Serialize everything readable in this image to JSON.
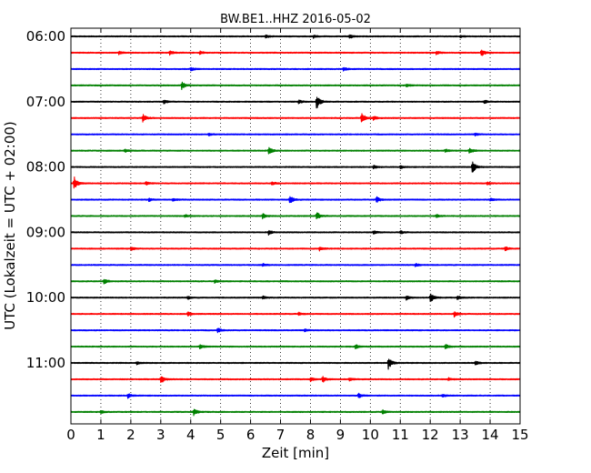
{
  "chart_data": {
    "type": "line",
    "title": "BW.BE1..HHZ 2016-05-02",
    "xlabel": "Zeit  [min]",
    "ylabel": "UTC (Lokalzeit = UTC + 02:00)",
    "xlim": [
      0,
      15
    ],
    "x_ticks": [
      "0",
      "1",
      "2",
      "3",
      "4",
      "5",
      "6",
      "7",
      "8",
      "9",
      "10",
      "11",
      "12",
      "13",
      "14",
      "15"
    ],
    "y_tick_labels": [
      "06:00",
      "07:00",
      "08:00",
      "09:00",
      "10:00",
      "11:00"
    ],
    "grid": true,
    "trace_interval_minutes": 15,
    "trace_colors": [
      "#000000",
      "#ff0000",
      "#0000ff",
      "#008000"
    ],
    "traces": [
      {
        "start": "06:00",
        "events": [
          [
            6.5,
            0.35
          ],
          [
            8.1,
            0.3
          ],
          [
            9.3,
            0.45
          ],
          [
            13.0,
            0.25
          ]
        ]
      },
      {
        "start": "06:15",
        "events": [
          [
            1.6,
            0.3
          ],
          [
            3.3,
            0.4
          ],
          [
            4.3,
            0.3
          ],
          [
            12.2,
            0.35
          ],
          [
            13.7,
            0.7
          ]
        ]
      },
      {
        "start": "06:30",
        "events": [
          [
            4.0,
            0.35
          ],
          [
            9.1,
            0.35
          ]
        ]
      },
      {
        "start": "06:45",
        "events": [
          [
            3.7,
            0.8
          ],
          [
            11.2,
            0.3
          ]
        ]
      },
      {
        "start": "07:00",
        "events": [
          [
            3.1,
            0.4
          ],
          [
            7.6,
            0.35
          ],
          [
            8.2,
            1.6
          ],
          [
            13.8,
            0.35
          ]
        ]
      },
      {
        "start": "07:15",
        "events": [
          [
            2.4,
            0.8
          ],
          [
            9.7,
            1.2
          ],
          [
            10.1,
            0.4
          ]
        ]
      },
      {
        "start": "07:30",
        "events": [
          [
            4.6,
            0.25
          ],
          [
            13.5,
            0.25
          ]
        ]
      },
      {
        "start": "07:45",
        "events": [
          [
            1.8,
            0.3
          ],
          [
            6.6,
            0.8
          ],
          [
            12.5,
            0.3
          ],
          [
            13.3,
            0.6
          ]
        ]
      },
      {
        "start": "08:00",
        "events": [
          [
            10.1,
            0.4
          ],
          [
            11.0,
            0.3
          ],
          [
            13.4,
            1.3
          ]
        ]
      },
      {
        "start": "08:15",
        "events": [
          [
            0.1,
            1.4
          ],
          [
            2.5,
            0.3
          ],
          [
            6.7,
            0.35
          ],
          [
            13.9,
            0.25
          ]
        ]
      },
      {
        "start": "08:30",
        "events": [
          [
            2.6,
            0.35
          ],
          [
            3.4,
            0.3
          ],
          [
            7.3,
            0.9
          ],
          [
            10.2,
            0.65
          ],
          [
            14.0,
            0.3
          ]
        ]
      },
      {
        "start": "08:45",
        "events": [
          [
            3.8,
            0.3
          ],
          [
            6.4,
            0.5
          ],
          [
            8.2,
            0.9
          ],
          [
            12.2,
            0.35
          ]
        ]
      },
      {
        "start": "09:00",
        "events": [
          [
            6.6,
            0.45
          ],
          [
            10.1,
            0.35
          ],
          [
            11.0,
            0.3
          ]
        ]
      },
      {
        "start": "09:15",
        "events": [
          [
            2.0,
            0.35
          ],
          [
            8.3,
            0.35
          ],
          [
            14.5,
            0.4
          ]
        ]
      },
      {
        "start": "09:30",
        "events": [
          [
            6.4,
            0.25
          ],
          [
            11.5,
            0.3
          ]
        ]
      },
      {
        "start": "09:45",
        "events": [
          [
            1.1,
            0.55
          ],
          [
            4.8,
            0.35
          ]
        ]
      },
      {
        "start": "10:00",
        "events": [
          [
            3.9,
            0.35
          ],
          [
            6.4,
            0.3
          ],
          [
            11.2,
            0.45
          ],
          [
            12.0,
            1.1
          ],
          [
            12.9,
            0.4
          ]
        ]
      },
      {
        "start": "10:15",
        "events": [
          [
            3.9,
            0.4
          ],
          [
            7.6,
            0.3
          ],
          [
            12.8,
            0.6
          ]
        ]
      },
      {
        "start": "10:30",
        "events": [
          [
            4.9,
            0.5
          ],
          [
            7.8,
            0.25
          ]
        ]
      },
      {
        "start": "10:45",
        "events": [
          [
            4.3,
            0.5
          ],
          [
            9.5,
            0.45
          ],
          [
            12.5,
            0.5
          ]
        ]
      },
      {
        "start": "11:00",
        "events": [
          [
            10.6,
            1.3
          ],
          [
            13.5,
            0.4
          ],
          [
            2.2,
            0.25
          ]
        ]
      },
      {
        "start": "11:15",
        "events": [
          [
            3.0,
            0.9
          ],
          [
            8.0,
            0.4
          ],
          [
            8.4,
            0.65
          ],
          [
            9.3,
            0.35
          ],
          [
            12.6,
            0.3
          ]
        ]
      },
      {
        "start": "11:30",
        "events": [
          [
            1.9,
            0.45
          ],
          [
            9.6,
            0.5
          ],
          [
            12.4,
            0.3
          ]
        ]
      },
      {
        "start": "11:45",
        "events": [
          [
            1.0,
            0.3
          ],
          [
            4.1,
            0.75
          ],
          [
            10.4,
            0.4
          ]
        ]
      }
    ]
  }
}
